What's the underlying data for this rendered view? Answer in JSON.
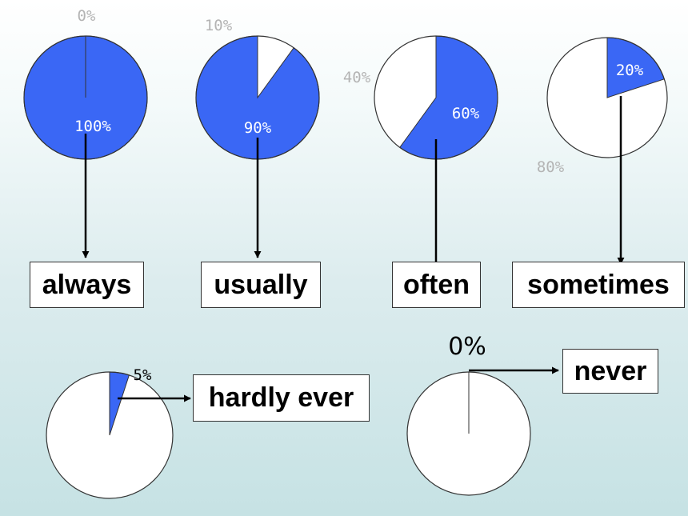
{
  "colors": {
    "fill": "#3a67f5",
    "empty": "#ffffff",
    "outline": "#333333"
  },
  "chart_data": [
    {
      "type": "pie",
      "slices": [
        {
          "label": "100%",
          "value": 100
        },
        {
          "label": "0%",
          "value": 0
        }
      ],
      "word": "always"
    },
    {
      "type": "pie",
      "slices": [
        {
          "label": "90%",
          "value": 90
        },
        {
          "label": "10%",
          "value": 10
        }
      ],
      "word": "usually"
    },
    {
      "type": "pie",
      "slices": [
        {
          "label": "60%",
          "value": 60
        },
        {
          "label": "40%",
          "value": 40
        }
      ],
      "word": "often"
    },
    {
      "type": "pie",
      "slices": [
        {
          "label": "20%",
          "value": 20
        },
        {
          "label": "80%",
          "value": 80
        }
      ],
      "word": "sometimes"
    },
    {
      "type": "pie",
      "slices": [
        {
          "label": "5%",
          "value": 5
        }
      ],
      "word": "hardly ever"
    },
    {
      "type": "pie",
      "slices": [
        {
          "label": "0%",
          "value": 0
        }
      ],
      "word": "never"
    }
  ]
}
